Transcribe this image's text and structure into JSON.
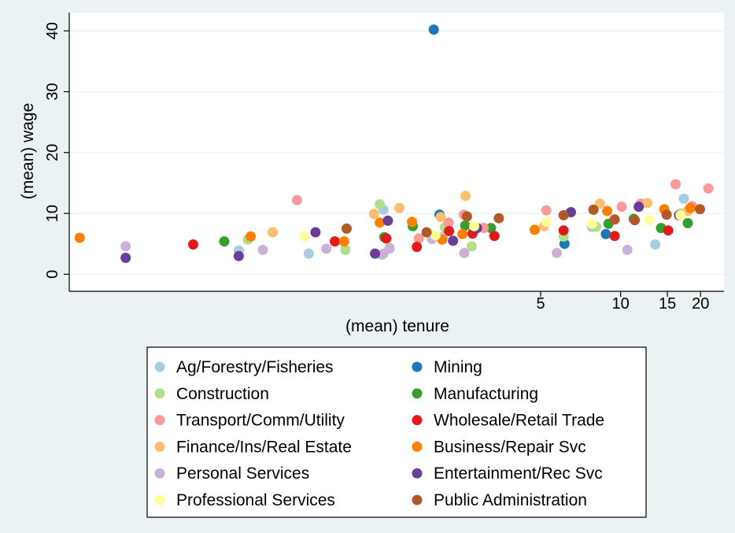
{
  "chart_data": {
    "type": "scatter",
    "title": "",
    "xlabel": "(mean) tenure",
    "ylabel": "(mean) wage",
    "x_scale": "log",
    "xlim": [
      0.084,
      24.5
    ],
    "ylim": [
      -2.8,
      43
    ],
    "x_ticks": [
      5,
      10,
      15,
      20
    ],
    "y_ticks": [
      0,
      10,
      20,
      30,
      40
    ],
    "grid": "horizontal",
    "legend_position": "bottom",
    "series": [
      {
        "name": "Ag/Forestry/Fisheries",
        "color": "#a6cee3",
        "points": [
          [
            0.365,
            3.9
          ],
          [
            0.67,
            3.4
          ],
          [
            1.26,
            3.2
          ],
          [
            1.28,
            10.6
          ],
          [
            1.35,
            4.2
          ],
          [
            2.15,
            6.2
          ],
          [
            7.8,
            7.8
          ],
          [
            13.5,
            4.9
          ],
          [
            17.3,
            12.4
          ]
        ]
      },
      {
        "name": "Mining",
        "color": "#1f78b4",
        "points": [
          [
            1.98,
            40.2
          ],
          [
            2.08,
            9.8
          ],
          [
            6.15,
            5.0
          ],
          [
            8.8,
            6.6
          ]
        ]
      },
      {
        "name": "Construction",
        "color": "#b2df8a",
        "points": [
          [
            0.395,
            5.7
          ],
          [
            0.92,
            4.0
          ],
          [
            1.24,
            11.5
          ],
          [
            1.32,
            5.8
          ],
          [
            2.18,
            7.7
          ],
          [
            2.75,
            4.6
          ],
          [
            6.1,
            6.2
          ],
          [
            8.1,
            7.8
          ],
          [
            16.9,
            10.0
          ]
        ]
      },
      {
        "name": "Manufacturing",
        "color": "#33a02c",
        "points": [
          [
            0.322,
            5.4
          ],
          [
            1.29,
            6.1
          ],
          [
            1.65,
            7.9
          ],
          [
            2.6,
            8.0
          ],
          [
            3.25,
            7.6
          ],
          [
            9.0,
            8.3
          ],
          [
            11.2,
            9.1
          ],
          [
            14.2,
            7.6
          ],
          [
            17.9,
            8.4
          ]
        ]
      },
      {
        "name": "Transport/Comm/Utility",
        "color": "#fb9a99",
        "points": [
          [
            0.605,
            12.2
          ],
          [
            1.74,
            5.9
          ],
          [
            2.25,
            8.5
          ],
          [
            2.57,
            9.8
          ],
          [
            3.05,
            7.6
          ],
          [
            5.25,
            10.5
          ],
          [
            10.1,
            11.1
          ],
          [
            11.9,
            11.6
          ],
          [
            16.1,
            14.8
          ],
          [
            18.6,
            11.2
          ],
          [
            21.4,
            14.1
          ]
        ]
      },
      {
        "name": "Wholesale/Retail Trade",
        "color": "#e31a1c",
        "points": [
          [
            0.246,
            4.9
          ],
          [
            0.84,
            5.4
          ],
          [
            1.31,
            5.9
          ],
          [
            1.71,
            4.5
          ],
          [
            2.26,
            7.1
          ],
          [
            2.77,
            6.7
          ],
          [
            3.35,
            6.3
          ],
          [
            6.1,
            7.2
          ],
          [
            9.5,
            6.3
          ],
          [
            15.1,
            7.2
          ]
        ]
      },
      {
        "name": "Finance/Ins/Real Estate",
        "color": "#fdbf6f",
        "points": [
          [
            0.49,
            6.9
          ],
          [
            1.18,
            9.9
          ],
          [
            1.47,
            10.9
          ],
          [
            2.1,
            9.4
          ],
          [
            2.61,
            12.9
          ],
          [
            5.15,
            7.9
          ],
          [
            8.35,
            11.6
          ],
          [
            12.6,
            11.7
          ],
          [
            17.9,
            10.4
          ]
        ]
      },
      {
        "name": "Business/Repair Svc",
        "color": "#ff7f00",
        "points": [
          [
            0.092,
            6.0
          ],
          [
            0.405,
            6.2
          ],
          [
            0.91,
            5.4
          ],
          [
            1.24,
            8.5
          ],
          [
            1.64,
            8.6
          ],
          [
            2.13,
            5.7
          ],
          [
            2.54,
            6.6
          ],
          [
            4.75,
            7.3
          ],
          [
            8.9,
            10.4
          ],
          [
            14.6,
            10.7
          ],
          [
            18.3,
            10.9
          ]
        ]
      },
      {
        "name": "Personal Services",
        "color": "#cab2d6",
        "points": [
          [
            0.137,
            4.6
          ],
          [
            0.45,
            4.0
          ],
          [
            0.78,
            4.2
          ],
          [
            1.28,
            3.4
          ],
          [
            1.35,
            4.3
          ],
          [
            1.95,
            5.8
          ],
          [
            2.58,
            3.5
          ],
          [
            5.75,
            3.5
          ],
          [
            10.6,
            4.0
          ]
        ]
      },
      {
        "name": "Entertainment/Rec Svc",
        "color": "#6a3d9a",
        "points": [
          [
            0.137,
            2.7
          ],
          [
            0.365,
            3.0
          ],
          [
            0.71,
            6.9
          ],
          [
            1.19,
            3.4
          ],
          [
            1.33,
            8.8
          ],
          [
            2.34,
            5.5
          ],
          [
            2.88,
            7.6
          ],
          [
            6.5,
            10.2
          ],
          [
            11.7,
            11.1
          ],
          [
            16.6,
            9.7
          ]
        ]
      },
      {
        "name": "Professional Services",
        "color": "#ffff99",
        "points": [
          [
            0.645,
            6.2
          ],
          [
            2.01,
            6.4
          ],
          [
            2.81,
            7.9
          ],
          [
            5.25,
            8.6
          ],
          [
            7.8,
            8.3
          ],
          [
            12.8,
            8.9
          ],
          [
            16.8,
            9.7
          ]
        ]
      },
      {
        "name": "Public Administration",
        "color": "#b15928",
        "points": [
          [
            0.93,
            7.5
          ],
          [
            1.86,
            6.9
          ],
          [
            2.64,
            9.5
          ],
          [
            3.48,
            9.2
          ],
          [
            6.1,
            9.7
          ],
          [
            7.9,
            10.6
          ],
          [
            9.5,
            9.0
          ],
          [
            11.3,
            8.9
          ],
          [
            14.9,
            9.8
          ],
          [
            19.9,
            10.7
          ]
        ]
      }
    ]
  }
}
